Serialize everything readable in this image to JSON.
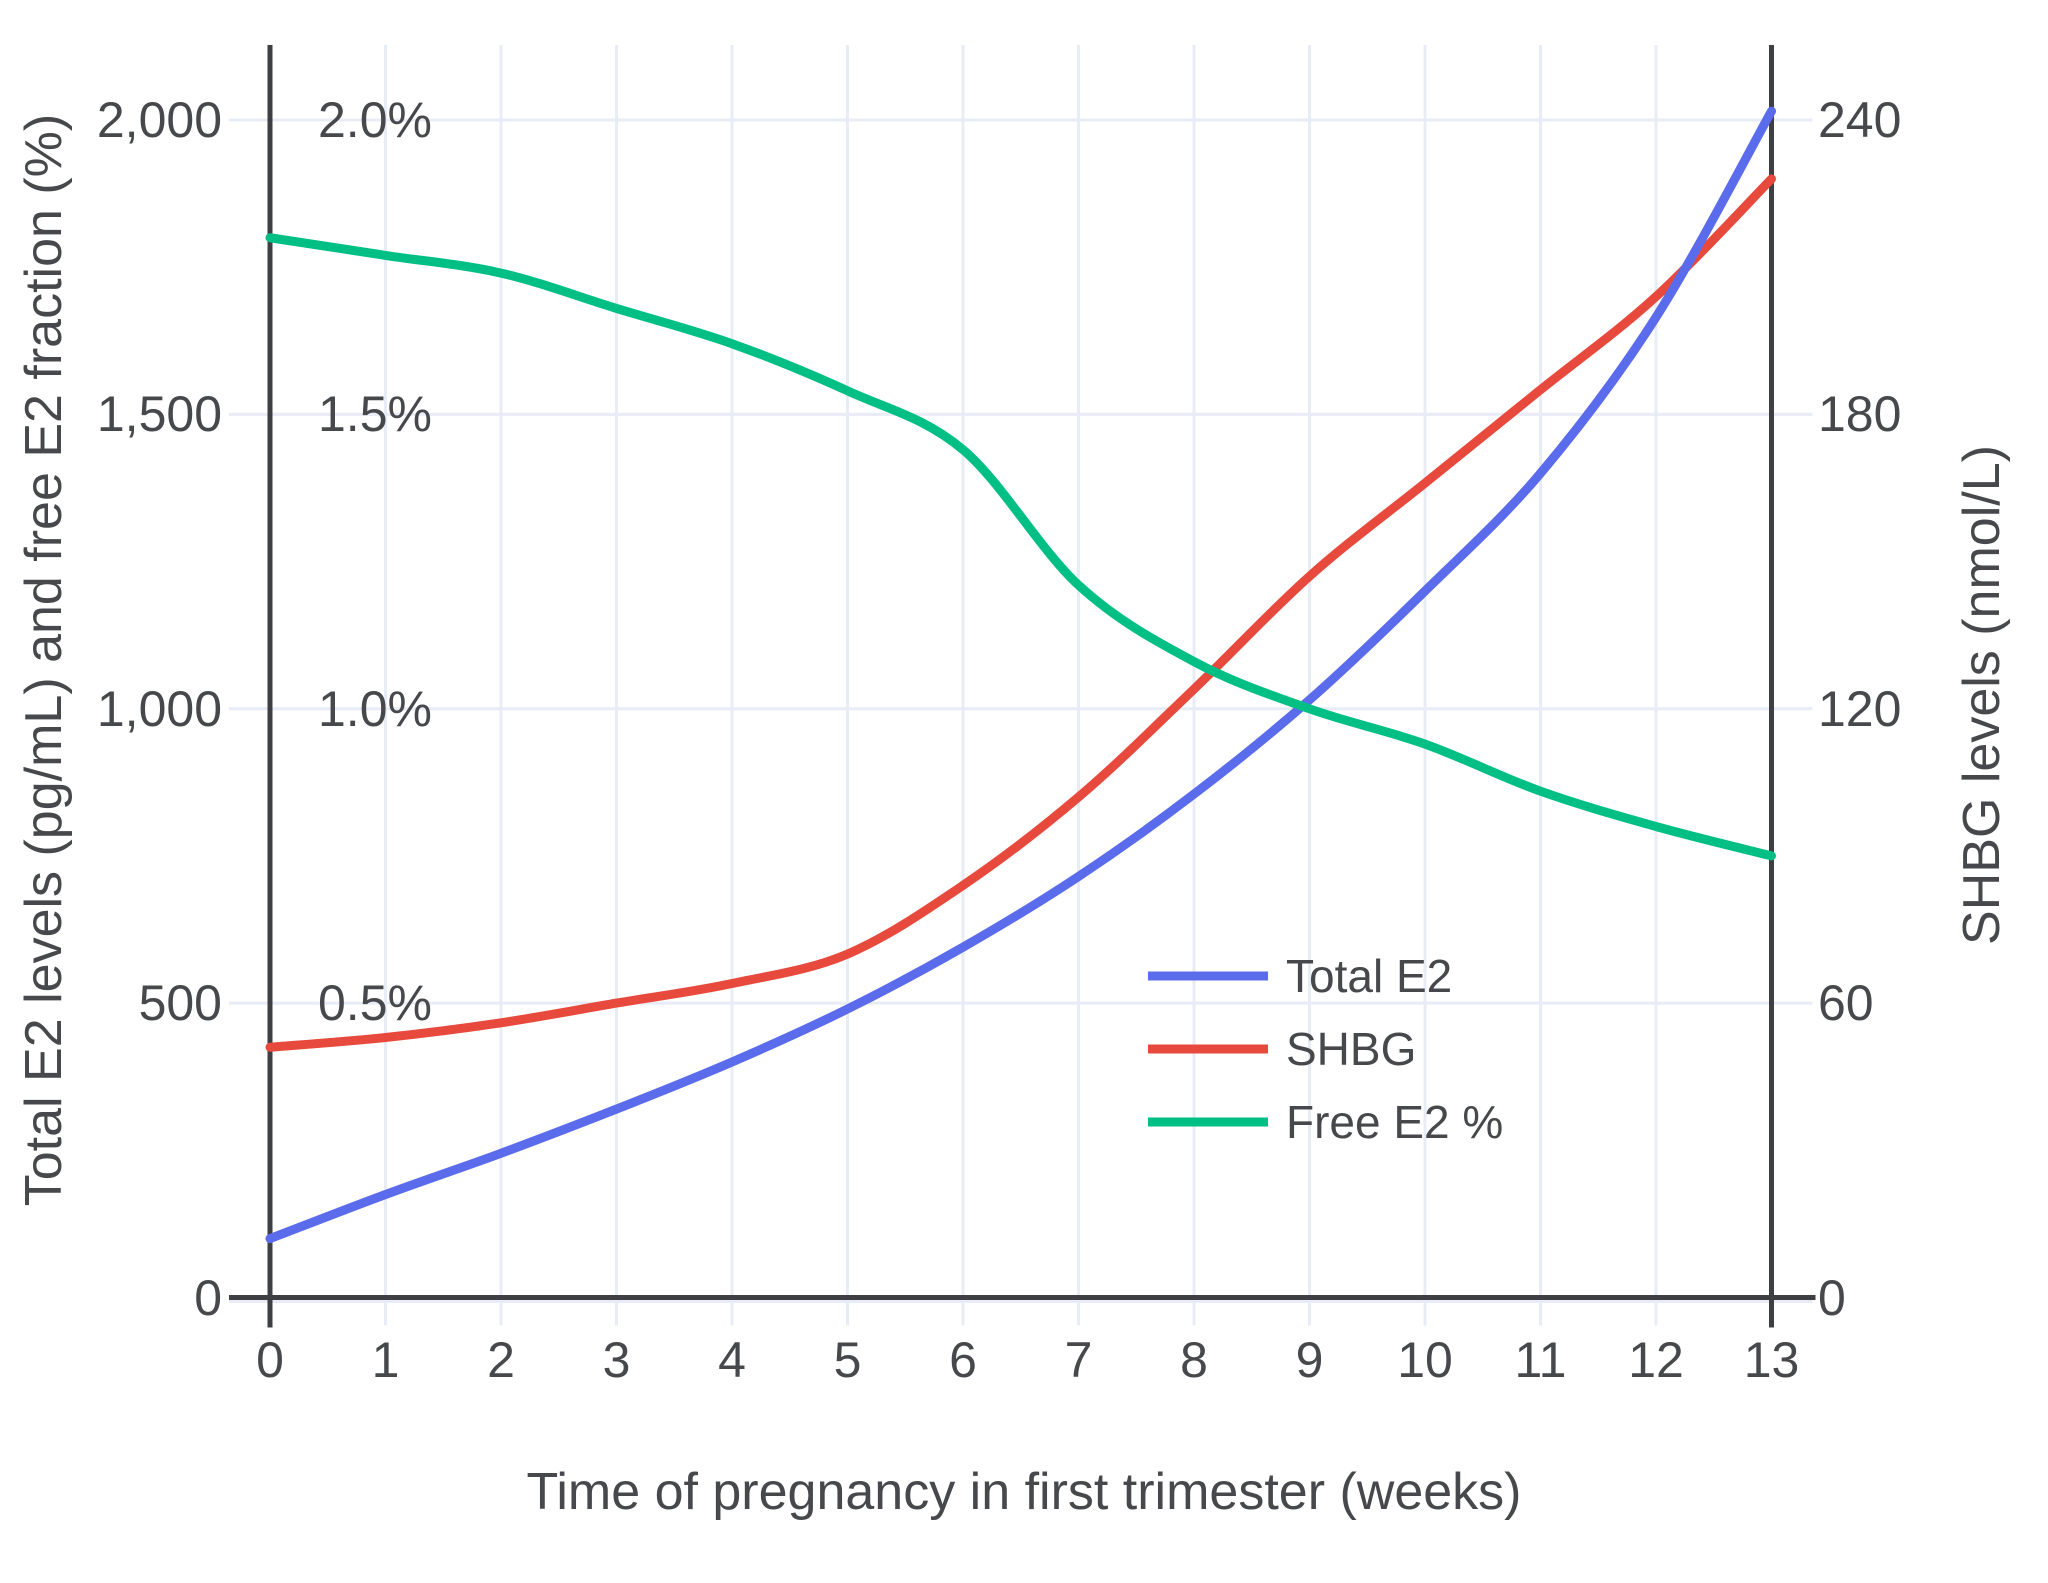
{
  "figure": {
    "x_axis": {
      "title": "Time of pregnancy in first trimester (weeks)",
      "ticks": [
        {
          "label": "0",
          "w": 0
        },
        {
          "label": "1",
          "w": 1
        },
        {
          "label": "2",
          "w": 2
        },
        {
          "label": "3",
          "w": 3
        },
        {
          "label": "4",
          "w": 4
        },
        {
          "label": "5",
          "w": 5
        },
        {
          "label": "6",
          "w": 6
        },
        {
          "label": "7",
          "w": 7
        },
        {
          "label": "8",
          "w": 8
        },
        {
          "label": "9",
          "w": 9
        },
        {
          "label": "10",
          "w": 10
        },
        {
          "label": "11",
          "w": 11
        },
        {
          "label": "12",
          "w": 12
        },
        {
          "label": "13",
          "w": 13
        }
      ]
    },
    "y_left": {
      "title": "Total E2 levels (pg/mL) and free E2 fraction (%)",
      "ticks": [
        {
          "label": "0",
          "v": 0
        },
        {
          "label": "500",
          "v": 500
        },
        {
          "label": "1,000",
          "v": 1000
        },
        {
          "label": "1,500",
          "v": 1500
        },
        {
          "label": "2,000",
          "v": 2000
        }
      ],
      "pct_ticks": [
        {
          "label": "0.5%",
          "v": 500
        },
        {
          "label": "1.0%",
          "v": 1000
        },
        {
          "label": "1.5%",
          "v": 1500
        },
        {
          "label": "2.0%",
          "v": 2000
        }
      ]
    },
    "y_right": {
      "title": "SHBG levels (nmol/L)",
      "ticks": [
        {
          "label": "0",
          "v": 0
        },
        {
          "label": "60",
          "v": 60
        },
        {
          "label": "120",
          "v": 120
        },
        {
          "label": "180",
          "v": 180
        },
        {
          "label": "240",
          "v": 240
        }
      ]
    },
    "legend": [
      {
        "label": "Total E2",
        "color": "#5a6bec"
      },
      {
        "label": "SHBG",
        "color": "#e8493d"
      },
      {
        "label": "Free E2 %",
        "color": "#00bf85"
      }
    ],
    "colors": {
      "grid": "#e8ecf6",
      "axis": "#3d3f42",
      "text": "#46484c",
      "total_e2": "#5a6bec",
      "shbg": "#e8493d",
      "free_e2": "#00bf85",
      "background": "#ffffff"
    }
  },
  "chart_data": {
    "type": "line",
    "x": [
      0,
      1,
      2,
      3,
      4,
      5,
      6,
      7,
      8,
      9,
      10,
      11,
      12,
      13
    ],
    "series": [
      {
        "name": "Total E2",
        "unit": "pg/mL",
        "axis": "left",
        "color": "#5a6bec",
        "values": [
          100,
          175,
          245,
          320,
          400,
          490,
          595,
          715,
          855,
          1015,
          1200,
          1400,
          1665,
          2015
        ]
      },
      {
        "name": "SHBG",
        "unit": "nmol/L",
        "axis": "right",
        "color": "#e8493d",
        "values": [
          51,
          53,
          56,
          60,
          64,
          70,
          84,
          102,
          124,
          147,
          166,
          185,
          204,
          228
        ]
      },
      {
        "name": "Free E2 %",
        "unit": "%",
        "axis": "left_percent",
        "color": "#00bf85",
        "values": [
          1.8,
          1.77,
          1.74,
          1.68,
          1.62,
          1.54,
          1.44,
          1.21,
          1.08,
          1.0,
          0.94,
          0.86,
          0.8,
          0.75
        ]
      }
    ],
    "axes": {
      "x_range": [
        0,
        13
      ],
      "y_left_range": [
        0,
        2125
      ],
      "y_right_range": [
        0,
        255
      ],
      "percent_to_left_scale": 1000,
      "right_to_left_scale": 8.3333,
      "grid": true,
      "legend_position": "center-right"
    }
  }
}
